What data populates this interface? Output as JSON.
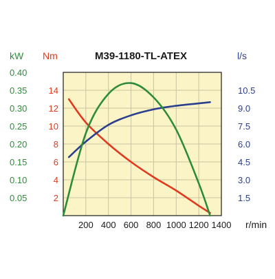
{
  "chart_data": {
    "type": "line",
    "title": "M39-1180-TL-ATEX",
    "xlabel": "r/min",
    "xlim": [
      0,
      1400
    ],
    "x_ticks": [
      "200",
      "400",
      "600",
      "800",
      "1000",
      "1200",
      "1400"
    ],
    "grid": true,
    "axes": [
      {
        "key": "kw",
        "unit": "kW",
        "color": "#2e8b3a",
        "lim": [
          0,
          0.4
        ],
        "ticks": [
          "0.05",
          "0.10",
          "0.15",
          "0.20",
          "0.25",
          "0.30",
          "0.35",
          "0.40"
        ]
      },
      {
        "key": "nm",
        "unit": "Nm",
        "color": "#e03a1e",
        "lim": [
          0,
          16
        ],
        "ticks": [
          "2",
          "4",
          "6",
          "8",
          "10",
          "12",
          "14"
        ]
      },
      {
        "key": "ls",
        "unit": "l/s",
        "color": "#2a3f8f",
        "lim": [
          0,
          12
        ],
        "ticks": [
          "1.5",
          "3.0",
          "4.5",
          "6.0",
          "7.5",
          "9.0",
          "10.5"
        ]
      }
    ],
    "series": [
      {
        "axis": "nm",
        "color": "#e03a1e",
        "x": [
          50,
          200,
          400,
          600,
          800,
          1000,
          1200,
          1300
        ],
        "y": [
          13.0,
          10.4,
          8.0,
          6.0,
          4.3,
          2.8,
          1.1,
          0.3
        ]
      },
      {
        "axis": "ls",
        "color": "#2a3f8f",
        "x": [
          50,
          200,
          400,
          600,
          800,
          1000,
          1200,
          1300
        ],
        "y": [
          4.9,
          6.2,
          7.6,
          8.4,
          8.9,
          9.2,
          9.4,
          9.5
        ]
      },
      {
        "axis": "kw",
        "color": "#2e8b3a",
        "x": [
          0,
          200,
          400,
          600,
          800,
          1000,
          1200,
          1300
        ],
        "y": [
          0.0,
          0.23,
          0.34,
          0.37,
          0.33,
          0.24,
          0.09,
          0.0
        ]
      }
    ]
  }
}
